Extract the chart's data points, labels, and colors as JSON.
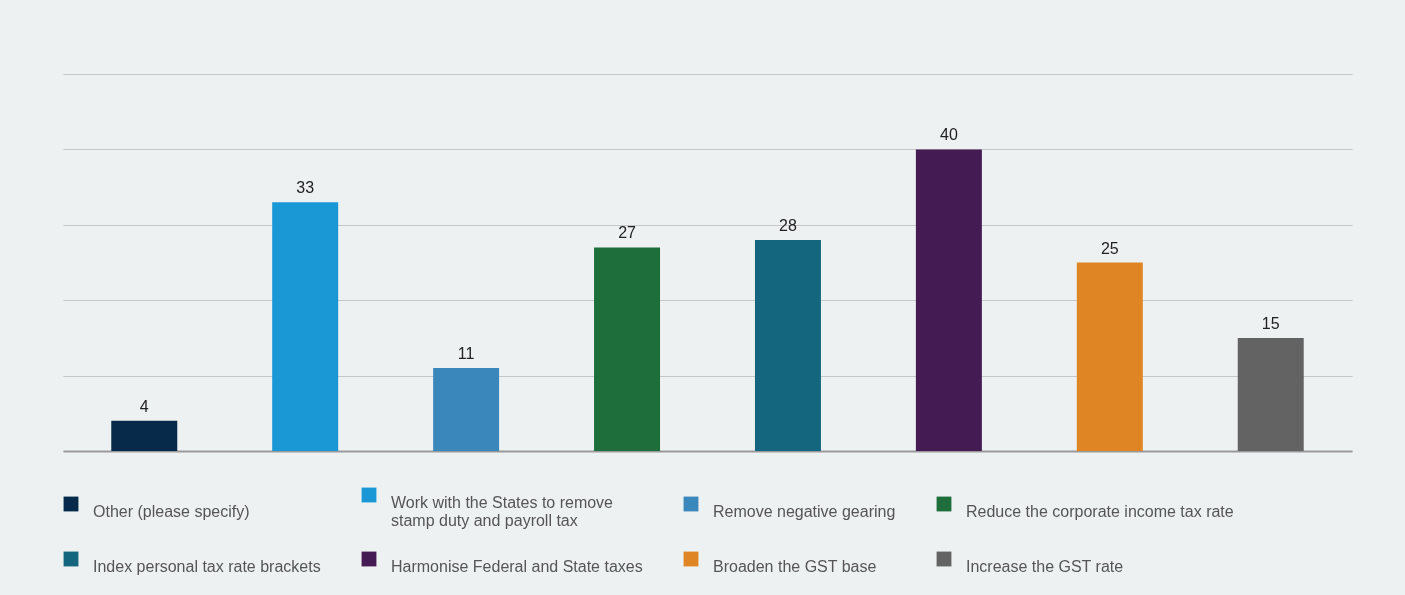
{
  "chart_data": {
    "type": "bar",
    "stacked": true,
    "categories": [
      null,
      null,
      null,
      null,
      null,
      null,
      null,
      null
    ],
    "series": [
      {
        "name": "Other (please specify)",
        "color": "#072a4a",
        "values": [
          4,
          null,
          null,
          null,
          null,
          null,
          null,
          null
        ]
      },
      {
        "name": "Work with the States to remove stamp duty and payroll tax",
        "color": "#1a98d5",
        "values": [
          null,
          33,
          null,
          null,
          null,
          null,
          null,
          null
        ]
      },
      {
        "name": "Remove negative gearing",
        "color": "#3a87bb",
        "values": [
          null,
          null,
          11,
          null,
          null,
          null,
          null,
          null
        ]
      },
      {
        "name": "Reduce the corporate income tax rate",
        "color": "#1d6e3a",
        "values": [
          null,
          null,
          null,
          27,
          null,
          null,
          null,
          null
        ]
      },
      {
        "name": "Index personal tax rate brackets",
        "color": "#14667e",
        "values": [
          null,
          null,
          null,
          null,
          28,
          null,
          null,
          null
        ]
      },
      {
        "name": "Harmonise Federal and State taxes",
        "color": "#441b52",
        "values": [
          null,
          null,
          null,
          null,
          null,
          40,
          null,
          null
        ]
      },
      {
        "name": "Broaden the GST base",
        "color": "#df8523",
        "values": [
          null,
          null,
          null,
          null,
          null,
          null,
          25,
          null
        ]
      },
      {
        "name": "Increase the GST rate",
        "color": "#636363",
        "values": [
          null,
          null,
          null,
          null,
          null,
          null,
          null,
          15
        ]
      }
    ],
    "ylim": [
      0,
      50
    ],
    "yticks": [
      {
        "value": 0,
        "label": null
      },
      {
        "value": 10,
        "label": null
      },
      {
        "value": 20,
        "label": null
      },
      {
        "value": 30,
        "label": null
      },
      {
        "value": 40,
        "label": null
      },
      {
        "value": 50,
        "label": null
      }
    ],
    "grid": "y",
    "tick_labels": false,
    "data_labels": true,
    "legend": "bottom"
  }
}
